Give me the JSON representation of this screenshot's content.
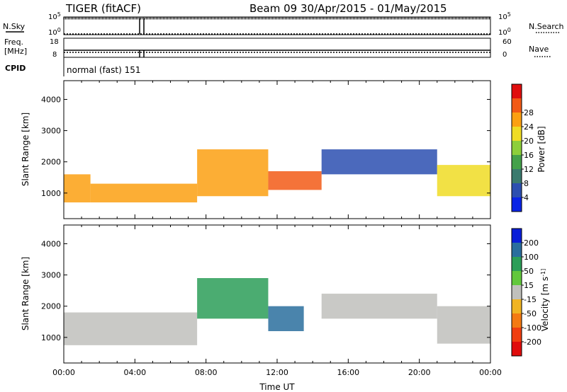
{
  "header": {
    "radar": "TIGER (fitACF)",
    "beam_and_dates": "Beam 09  30/Apr/2015 - 01/May/2015"
  },
  "status_panels": {
    "nsky_label": "N.Sky",
    "nsearch_label": "N.Search",
    "freq_label_line1": "Freq.",
    "freq_label_line2": "[MHz]",
    "nave_label": "Nave",
    "cpid_label": "CPID",
    "nsky_ticks": [
      "10^5",
      "10^0"
    ],
    "nsearch_ticks": [
      "10^5",
      "10^0"
    ],
    "freq_ticks": [
      "18",
      "8"
    ],
    "nave_ticks": [
      "60",
      "0"
    ],
    "cpid_text": "normal (fast) 151"
  },
  "chart_data": [
    {
      "type": "heatmap",
      "title": "",
      "ylabel": "Slant Range [km]",
      "xlabel": "",
      "x_range_hours": [
        0,
        24
      ],
      "y_range_km": [
        180,
        4600
      ],
      "y_ticks": [
        "1000",
        "2000",
        "3000",
        "4000"
      ],
      "x_ticks": [],
      "colorbar": {
        "label": "Power [dB]",
        "ticks": [
          "4",
          "8",
          "12",
          "16",
          "20",
          "24",
          "28"
        ],
        "colors": [
          "#0a24e6",
          "#2c4fb0",
          "#3a7a6e",
          "#44a14a",
          "#8dcf3a",
          "#f0dc24",
          "#fca012",
          "#f25a16",
          "#e00e0e"
        ]
      },
      "regions": [
        {
          "x": [
            0,
            1.5
          ],
          "y": [
            700,
            1600
          ],
          "value": 22
        },
        {
          "x": [
            1.5,
            7.5
          ],
          "y": [
            700,
            1300
          ],
          "value": 24
        },
        {
          "x": [
            7.5,
            11.5
          ],
          "y": [
            900,
            2400
          ],
          "value": 22
        },
        {
          "x": [
            11.5,
            14.5
          ],
          "y": [
            1100,
            1700
          ],
          "value": 25
        },
        {
          "x": [
            14.5,
            21
          ],
          "y": [
            1600,
            2400
          ],
          "value": 6
        },
        {
          "x": [
            21,
            24
          ],
          "y": [
            900,
            1900
          ],
          "value": 21
        }
      ]
    },
    {
      "type": "heatmap",
      "title": "",
      "ylabel": "Slant Range [km]",
      "xlabel": "Time UT",
      "x_range_hours": [
        0,
        24
      ],
      "y_range_km": [
        180,
        4600
      ],
      "y_ticks": [
        "1000",
        "2000",
        "3000",
        "4000"
      ],
      "x_ticks": [
        "00:00",
        "04:00",
        "08:00",
        "12:00",
        "16:00",
        "20:00",
        "00:00"
      ],
      "colorbar": {
        "label": "Velocity [m s^-1]",
        "ticks": [
          "200",
          "100",
          "50",
          "15",
          "-15",
          "-50",
          "-100",
          "-200"
        ],
        "colors": [
          "#0a1ed8",
          "#2a6e9e",
          "#2c9e58",
          "#62c83c",
          "#c0c0bc",
          "#f0b422",
          "#f47a12",
          "#f03e10",
          "#e00c0c"
        ]
      },
      "regions": [
        {
          "x": [
            0,
            7.5
          ],
          "y": [
            750,
            1800
          ],
          "value": 0
        },
        {
          "x": [
            7.5,
            11.5
          ],
          "y": [
            1600,
            2900
          ],
          "value": 60
        },
        {
          "x": [
            11.5,
            13.5
          ],
          "y": [
            1200,
            2000
          ],
          "value": 180
        },
        {
          "x": [
            14.5,
            21
          ],
          "y": [
            1600,
            2400
          ],
          "value": 0
        },
        {
          "x": [
            21,
            24
          ],
          "y": [
            800,
            2000
          ],
          "value": 0
        }
      ]
    }
  ]
}
